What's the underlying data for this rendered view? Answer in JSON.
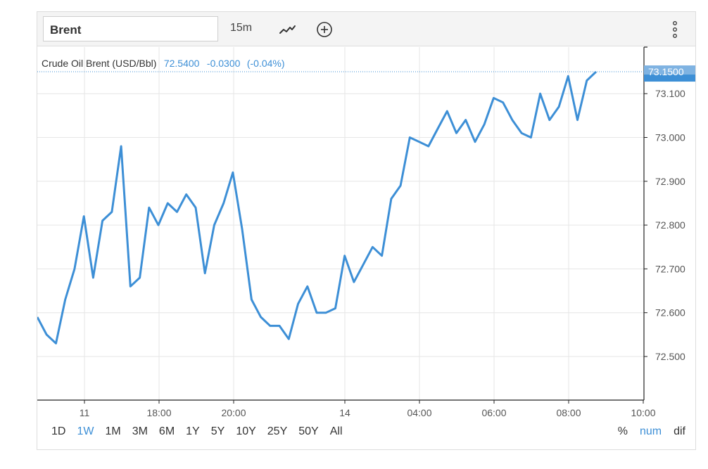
{
  "toolbar": {
    "symbol_value": "Brent",
    "interval_label": "15m",
    "chart_type_icon": "line-chart-icon",
    "add_icon": "plus-circle-icon",
    "more_icon": "more-vertical-icon"
  },
  "legend": {
    "name": "Crude Oil Brent (USD/Bbl)",
    "price": "72.5400",
    "change": "-0.0300",
    "change_pct": "(-0.04%)"
  },
  "last_price_tag": "73.1500",
  "colors": {
    "line": "#3d8fd6",
    "accent": "#3d8fd6",
    "grid": "#e6e6e6",
    "axis": "#222222"
  },
  "periods": [
    "1D",
    "1W",
    "1M",
    "3M",
    "6M",
    "1Y",
    "5Y",
    "10Y",
    "25Y",
    "50Y",
    "All"
  ],
  "active_period": "1W",
  "modes": [
    "%",
    "num",
    "dif"
  ],
  "active_mode": "num",
  "chart_data": {
    "type": "line",
    "title": "",
    "xlabel": "",
    "ylabel": "",
    "ylim": [
      72.4,
      73.2
    ],
    "y_ticks": [
      "72.500",
      "72.600",
      "72.700",
      "72.800",
      "72.900",
      "73.000",
      "73.100"
    ],
    "x_ticks": [
      "11",
      "18:00",
      "20:00",
      "14",
      "04:00",
      "06:00",
      "08:00",
      "10:00"
    ],
    "grid": true,
    "series": [
      {
        "values": [
          72.59,
          72.55,
          72.53,
          72.63,
          72.7,
          72.82,
          72.68,
          72.81,
          72.83,
          72.98,
          72.66,
          72.68,
          72.84,
          72.8,
          72.85,
          72.83,
          72.87,
          72.84,
          72.69,
          72.8,
          72.85,
          72.92,
          72.79,
          72.63,
          72.59,
          72.57,
          72.57,
          72.54,
          72.62,
          72.66,
          72.6,
          72.6,
          72.61,
          72.73,
          72.67,
          72.71,
          72.75,
          72.73,
          72.86,
          72.89,
          73.0,
          72.99,
          72.98,
          73.02,
          73.06,
          73.01,
          73.04,
          72.99,
          73.03,
          73.09,
          73.08,
          73.04,
          73.01,
          73.0,
          73.1,
          73.04,
          73.07,
          73.14,
          73.04,
          73.13,
          73.15
        ]
      }
    ]
  }
}
